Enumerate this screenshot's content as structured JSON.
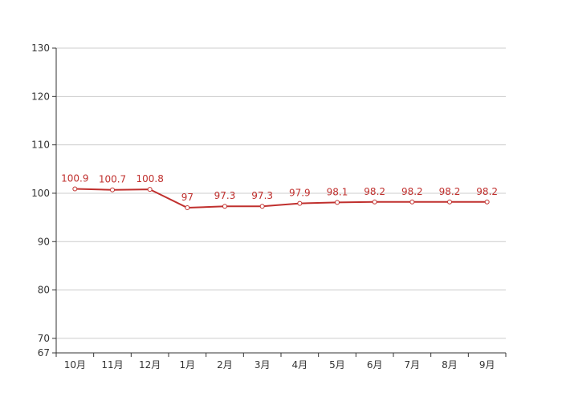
{
  "chart_data": {
    "type": "line",
    "categories": [
      "10月",
      "11月",
      "12月",
      "1月",
      "2月",
      "3月",
      "4月",
      "5月",
      "6月",
      "7月",
      "8月",
      "9月"
    ],
    "series": [
      {
        "values": [
          100.9,
          100.7,
          100.8,
          97,
          97.3,
          97.3,
          97.9,
          98.1,
          98.2,
          98.2,
          98.2,
          98.2
        ]
      }
    ],
    "data_labels": [
      "100.9",
      "100.7",
      "100.8",
      "97",
      "97.3",
      "97.3",
      "97.9",
      "98.1",
      "98.2",
      "98.2",
      "98.2",
      "98.2"
    ],
    "y_ticks": [
      67,
      70,
      80,
      90,
      100,
      110,
      120,
      130
    ],
    "y_tick_labels": [
      "67",
      "70",
      "80",
      "90",
      "100",
      "110",
      "120",
      "130"
    ],
    "ylim": [
      67,
      130
    ],
    "grid": true,
    "line_color": "#c0302e",
    "grid_color": "#cccccc",
    "axis_color": "#333333"
  }
}
